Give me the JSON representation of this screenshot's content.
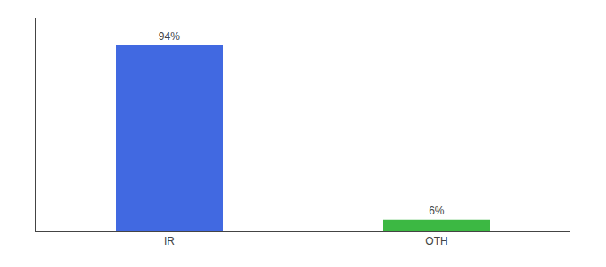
{
  "chart_data": {
    "type": "bar",
    "categories": [
      "IR",
      "OTH"
    ],
    "values": [
      94,
      6
    ],
    "value_labels": [
      "94%",
      "6%"
    ],
    "colors": [
      "#4169e1",
      "#3cb843"
    ],
    "ylim": [
      0,
      108
    ],
    "data_labels": true,
    "tick_labels": "x",
    "grid": false
  }
}
